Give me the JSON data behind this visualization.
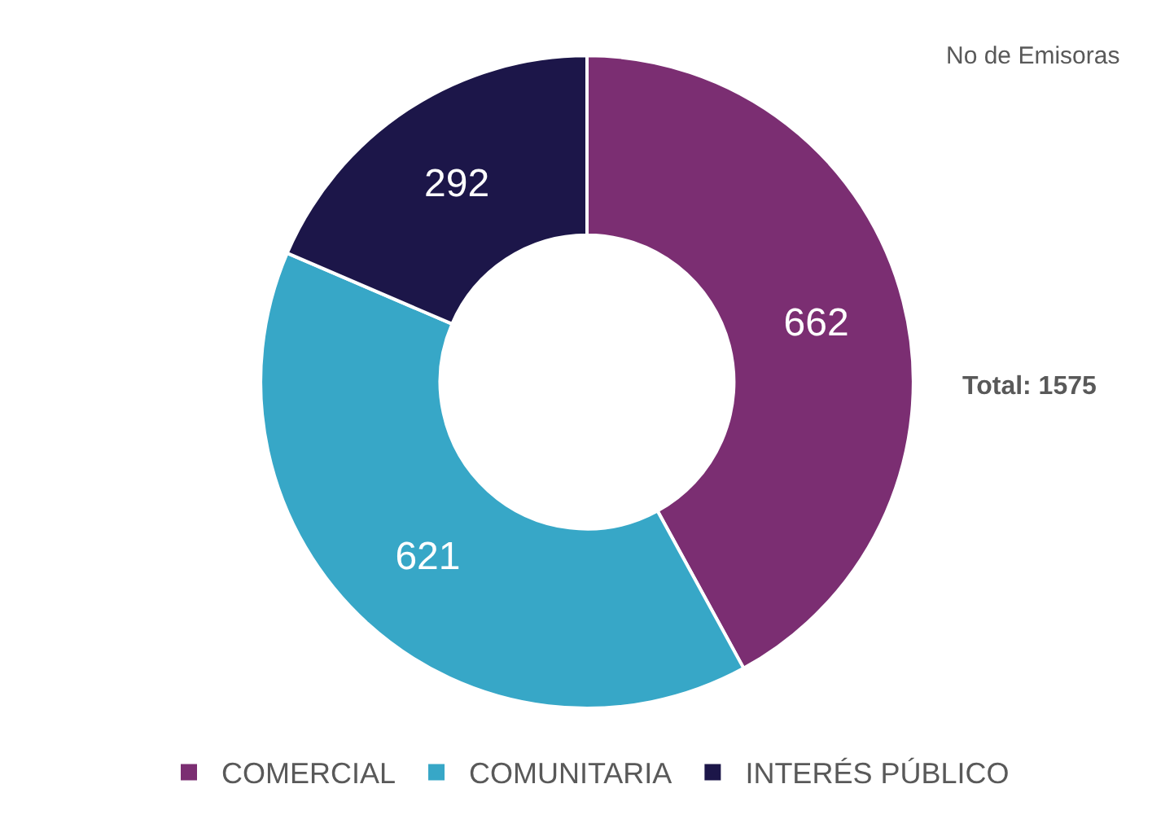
{
  "chart_data": {
    "type": "donut",
    "categories": [
      "COMERCIAL",
      "COMUNITARIA",
      "INTERÉS PÚBLICO"
    ],
    "values": [
      662,
      621,
      292
    ],
    "colors": [
      "#7b2e72",
      "#37a7c7",
      "#1c1649"
    ],
    "data_labels": true,
    "legend": "bottom",
    "annotations": [
      "No de Emisoras",
      "Total: 1575"
    ]
  }
}
